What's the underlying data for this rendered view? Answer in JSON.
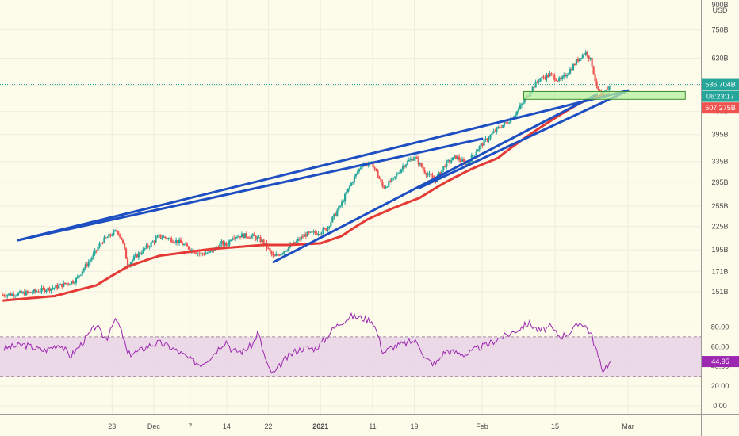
{
  "chart_data": [
    {
      "type": "candlestick",
      "currency_label": "USD",
      "scale": "log",
      "y_ticks": [
        "900B",
        "750B",
        "630B",
        "535B",
        "455B",
        "395B",
        "335B",
        "295B",
        "255B",
        "225B",
        "195B",
        "171B",
        "151B"
      ],
      "y_tick_values": [
        900,
        750,
        630,
        535,
        455,
        395,
        335,
        295,
        255,
        225,
        195,
        171,
        151
      ],
      "ylim": [
        137,
        900
      ],
      "x_ticks": [
        "23",
        "Dec",
        "7",
        "14",
        "22",
        "2021",
        "11",
        "19",
        "Feb",
        "15",
        "Mar"
      ],
      "x_tick_days": [
        -9,
        -1,
        6,
        13,
        21,
        31,
        41,
        49,
        62,
        76,
        90
      ],
      "x_bold": [
        "2021"
      ],
      "x_range_days": [
        -30.5,
        104
      ],
      "last_price": "536.704B",
      "last_price_value": 536.7,
      "countdown": "06:23:17",
      "ma_value": "507.275B",
      "ma_value_value": 507.3,
      "colors": {
        "up": "#26a69a",
        "down": "#ef5350",
        "ma": "#e53935",
        "trend": "#1e4fc2",
        "zone": "#b6f0a0",
        "price_flag": "#26a69a",
        "ma_flag": "#ef5350"
      },
      "price_key": [
        [
          -30,
          148
        ],
        [
          -25,
          150
        ],
        [
          -20,
          155
        ],
        [
          -16,
          162
        ],
        [
          -13,
          185
        ],
        [
          -11,
          205
        ],
        [
          -9,
          215
        ],
        [
          -8,
          220
        ],
        [
          -7,
          205
        ],
        [
          -6,
          178
        ],
        [
          -4,
          190
        ],
        [
          -2,
          200
        ],
        [
          0,
          212
        ],
        [
          2,
          209
        ],
        [
          4,
          204
        ],
        [
          6,
          196
        ],
        [
          8,
          190
        ],
        [
          10,
          192
        ],
        [
          12,
          203
        ],
        [
          13,
          200
        ],
        [
          14,
          212
        ],
        [
          16,
          213
        ],
        [
          18,
          212
        ],
        [
          20,
          205
        ],
        [
          22,
          186
        ],
        [
          24,
          194
        ],
        [
          26,
          203
        ],
        [
          28,
          214
        ],
        [
          30,
          216
        ],
        [
          32,
          221
        ],
        [
          33,
          232
        ],
        [
          35,
          258
        ],
        [
          37,
          295
        ],
        [
          39,
          330
        ],
        [
          41,
          330
        ],
        [
          43,
          285
        ],
        [
          45,
          300
        ],
        [
          47,
          328
        ],
        [
          49,
          345
        ],
        [
          51,
          315
        ],
        [
          53,
          298
        ],
        [
          55,
          330
        ],
        [
          57,
          345
        ],
        [
          59,
          328
        ],
        [
          61,
          360
        ],
        [
          63,
          385
        ],
        [
          65,
          410
        ],
        [
          67,
          428
        ],
        [
          69,
          460
        ],
        [
          71,
          510
        ],
        [
          73,
          555
        ],
        [
          75,
          570
        ],
        [
          77,
          548
        ],
        [
          79,
          590
        ],
        [
          81,
          640
        ],
        [
          82,
          655
        ],
        [
          83,
          615
        ],
        [
          84,
          525
        ],
        [
          85,
          500
        ],
        [
          86,
          520
        ],
        [
          86.7,
          536.7
        ]
      ],
      "ma_key": [
        [
          -30,
          143
        ],
        [
          -20,
          147
        ],
        [
          -12,
          157
        ],
        [
          -6,
          176
        ],
        [
          0,
          188
        ],
        [
          10,
          196
        ],
        [
          20,
          201
        ],
        [
          25,
          201
        ],
        [
          31,
          203
        ],
        [
          35,
          212
        ],
        [
          40,
          235
        ],
        [
          45,
          252
        ],
        [
          50,
          268
        ],
        [
          55,
          295
        ],
        [
          60,
          320
        ],
        [
          65,
          342
        ],
        [
          70,
          385
        ],
        [
          75,
          428
        ],
        [
          80,
          472
        ],
        [
          83,
          495
        ],
        [
          86.7,
          507.3
        ]
      ],
      "trendlines": [
        {
          "from": [
            -27,
            207
          ],
          "to": [
            62,
            385
          ]
        },
        {
          "from": [
            -27,
            207
          ],
          "to": [
            90,
            517
          ]
        },
        {
          "from": [
            22,
            181
          ],
          "to": [
            84,
            505
          ]
        },
        {
          "from": [
            50,
            285
          ],
          "to": [
            90,
            517
          ]
        }
      ],
      "zone": {
        "x": [
          70,
          101
        ],
        "y": [
          490,
          514
        ]
      },
      "last_price_dotted": true
    },
    {
      "type": "line",
      "indicator": "RSI",
      "y_ticks": [
        "80.00",
        "60.00",
        "40.00",
        "20.00",
        "0.00"
      ],
      "y_tick_values": [
        80,
        60,
        40,
        20,
        0
      ],
      "ylim": [
        -8,
        98
      ],
      "band": [
        30,
        70
      ],
      "last_value": "44.95",
      "last_value_value": 44.95,
      "color": "#9c27b0",
      "band_color": "#e9d2e6",
      "key": [
        [
          -30,
          58
        ],
        [
          -26,
          62
        ],
        [
          -22,
          56
        ],
        [
          -19,
          63
        ],
        [
          -17,
          50
        ],
        [
          -15,
          62
        ],
        [
          -13,
          75
        ],
        [
          -12,
          82
        ],
        [
          -11,
          72
        ],
        [
          -10,
          68
        ],
        [
          -9,
          84
        ],
        [
          -8,
          86
        ],
        [
          -7,
          72
        ],
        [
          -6,
          52
        ],
        [
          -4,
          55
        ],
        [
          -2,
          61
        ],
        [
          0,
          64
        ],
        [
          2,
          60
        ],
        [
          4,
          54
        ],
        [
          6,
          47
        ],
        [
          8,
          42
        ],
        [
          10,
          50
        ],
        [
          12,
          62
        ],
        [
          13,
          66
        ],
        [
          14,
          56
        ],
        [
          16,
          55
        ],
        [
          18,
          62
        ],
        [
          19,
          75
        ],
        [
          20,
          55
        ],
        [
          21,
          38
        ],
        [
          22,
          32
        ],
        [
          24,
          46
        ],
        [
          26,
          55
        ],
        [
          28,
          59
        ],
        [
          30,
          58
        ],
        [
          32,
          68
        ],
        [
          33,
          76
        ],
        [
          35,
          85
        ],
        [
          37,
          91
        ],
        [
          39,
          89
        ],
        [
          41,
          86
        ],
        [
          42,
          72
        ],
        [
          43,
          54
        ],
        [
          45,
          60
        ],
        [
          47,
          63
        ],
        [
          49,
          66
        ],
        [
          50,
          62
        ],
        [
          51,
          48
        ],
        [
          53,
          42
        ],
        [
          55,
          56
        ],
        [
          57,
          54
        ],
        [
          59,
          52
        ],
        [
          61,
          58
        ],
        [
          63,
          62
        ],
        [
          65,
          68
        ],
        [
          67,
          72
        ],
        [
          69,
          78
        ],
        [
          71,
          84
        ],
        [
          73,
          76
        ],
        [
          75,
          80
        ],
        [
          77,
          70
        ],
        [
          79,
          75
        ],
        [
          81,
          85
        ],
        [
          82,
          80
        ],
        [
          83,
          72
        ],
        [
          84,
          55
        ],
        [
          85,
          36
        ],
        [
          86.7,
          44.95
        ]
      ]
    }
  ]
}
